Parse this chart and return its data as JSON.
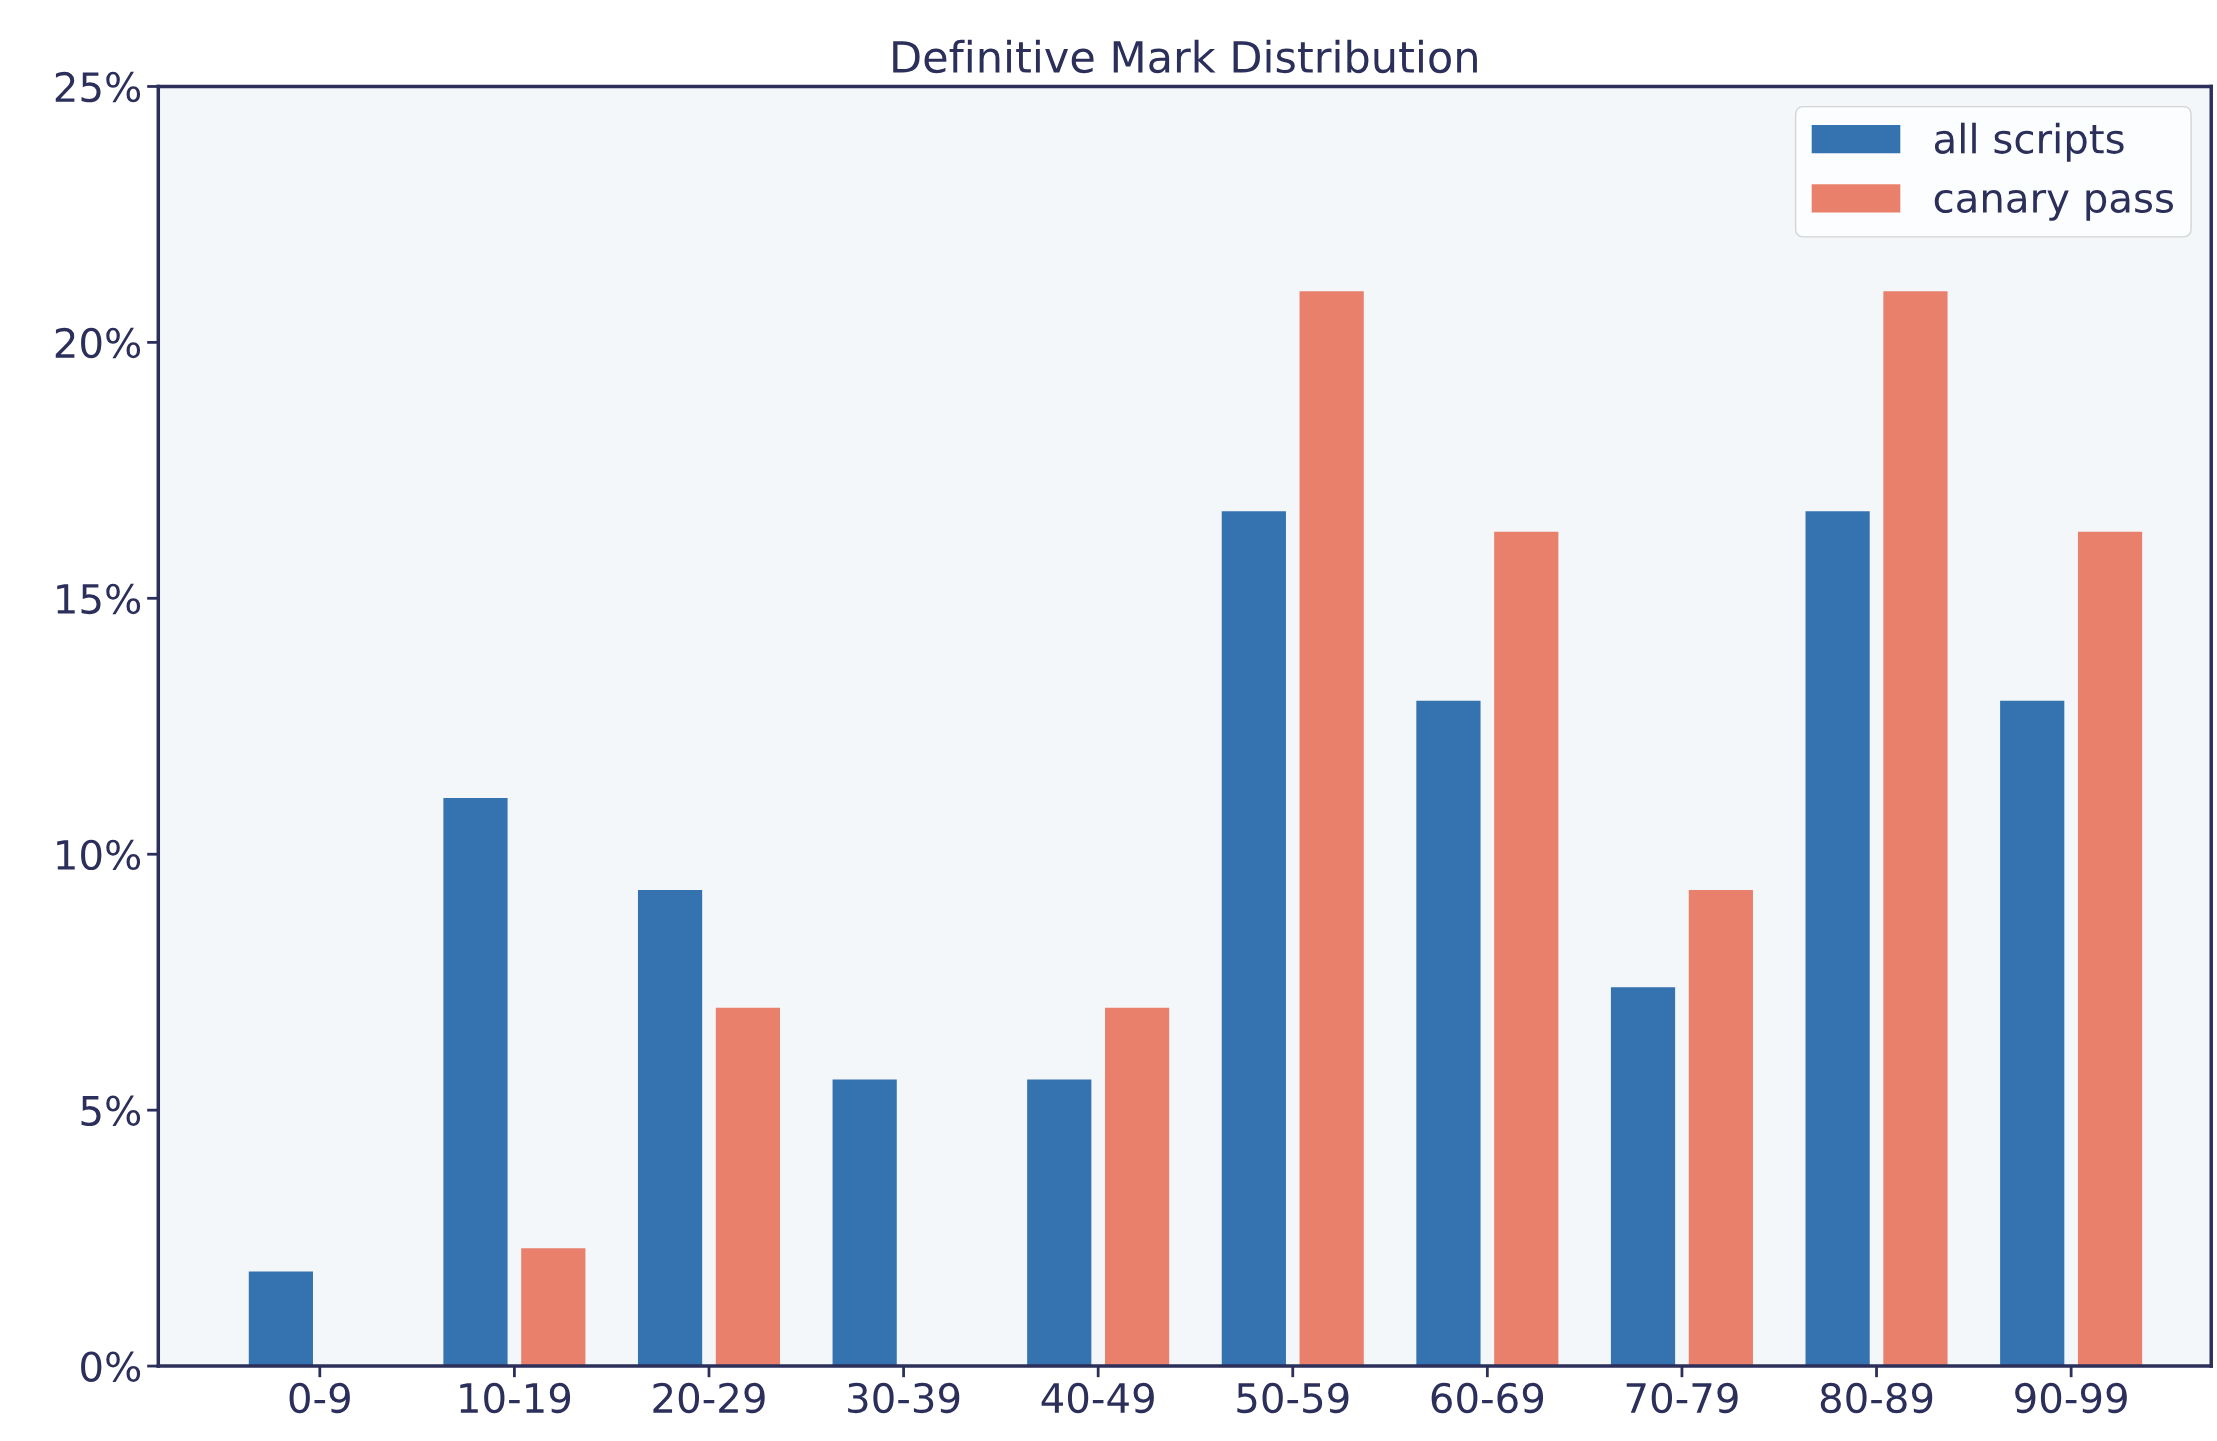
{
  "chart_data": {
    "type": "bar",
    "title": "Definitive Mark Distribution",
    "categories": [
      "0-9",
      "10-19",
      "20-29",
      "30-39",
      "40-49",
      "50-59",
      "60-69",
      "70-79",
      "80-89",
      "90-99"
    ],
    "series": [
      {
        "name": "all scripts",
        "color": "#3572b0",
        "values": [
          1.85,
          11.1,
          9.3,
          5.6,
          5.6,
          16.7,
          13.0,
          7.4,
          16.7,
          13.0
        ]
      },
      {
        "name": "canary pass",
        "color": "#e8806b",
        "values": [
          0,
          2.3,
          7.0,
          0,
          7.0,
          21.0,
          16.3,
          9.3,
          21.0,
          16.3
        ]
      }
    ],
    "ylim": [
      0,
      25
    ],
    "yticks": [
      {
        "value": 0,
        "label": "0%"
      },
      {
        "value": 5,
        "label": "5%"
      },
      {
        "value": 10,
        "label": "10%"
      },
      {
        "value": 15,
        "label": "15%"
      },
      {
        "value": 20,
        "label": "20%"
      },
      {
        "value": 25,
        "label": "25%"
      }
    ],
    "grid": false,
    "legend": "top right"
  }
}
